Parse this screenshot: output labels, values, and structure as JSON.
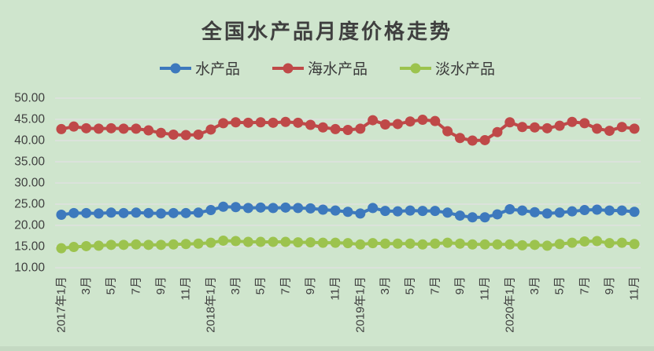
{
  "page": {
    "background_color": "#cfe5cd",
    "bottom_strip_color": "#c4d9c2",
    "text_color": "#3f3f3f"
  },
  "chart_data": {
    "type": "line",
    "title": "全国水产品月度价格走势",
    "xlabel": "",
    "ylabel": "",
    "ylim": [
      10,
      50
    ],
    "y_ticks": [
      "50.00",
      "45.00",
      "40.00",
      "35.00",
      "30.00",
      "25.00",
      "20.00",
      "15.00",
      "10.00"
    ],
    "grid": true,
    "gridline_color": "#e7dfe9",
    "axis_text_color": "#3f3f3f",
    "legend_position": "top",
    "x_tick_step": 2,
    "x_tick_labels": [
      "2017年1月",
      "3月",
      "5月",
      "7月",
      "9月",
      "11月",
      "2018年1月",
      "3月",
      "5月",
      "7月",
      "9月",
      "11月",
      "2019年1月",
      "3月",
      "5月",
      "7月",
      "9月",
      "11月",
      "2020年1月",
      "3月",
      "5月",
      "7月",
      "9月",
      "11月"
    ],
    "x_range_note": "monthly data 2017-01 through 2020-11, 47 points",
    "series": [
      {
        "name": "水产品",
        "color": "#3d79bd",
        "values": [
          22.5,
          22.9,
          22.9,
          22.8,
          23.0,
          22.9,
          23.0,
          22.9,
          22.8,
          22.9,
          22.9,
          23.0,
          23.6,
          24.4,
          24.3,
          24.1,
          24.2,
          24.1,
          24.2,
          24.1,
          24.0,
          23.7,
          23.5,
          23.2,
          22.8,
          24.1,
          23.4,
          23.3,
          23.5,
          23.4,
          23.4,
          23.0,
          22.3,
          21.9,
          21.9,
          22.6,
          23.8,
          23.5,
          23.1,
          22.8,
          23.0,
          23.3,
          23.6,
          23.7,
          23.5,
          23.5,
          23.2
        ]
      },
      {
        "name": "海水产品",
        "color": "#bf4948",
        "values": [
          42.7,
          43.3,
          42.9,
          42.8,
          42.9,
          42.8,
          42.8,
          42.4,
          41.8,
          41.4,
          41.3,
          41.4,
          42.6,
          44.1,
          44.3,
          44.2,
          44.3,
          44.2,
          44.4,
          44.2,
          43.7,
          43.1,
          42.7,
          42.5,
          42.8,
          44.8,
          43.8,
          43.9,
          44.5,
          44.9,
          44.6,
          42.2,
          40.6,
          40.0,
          40.1,
          42.0,
          44.3,
          43.2,
          43.1,
          42.9,
          43.5,
          44.4,
          44.1,
          42.8,
          42.3,
          43.2,
          42.8
        ]
      },
      {
        "name": "淡水产品",
        "color": "#9cc34e",
        "values": [
          14.6,
          14.9,
          15.1,
          15.2,
          15.4,
          15.4,
          15.5,
          15.4,
          15.4,
          15.5,
          15.6,
          15.7,
          15.9,
          16.4,
          16.3,
          16.1,
          16.1,
          16.1,
          16.1,
          16.0,
          16.0,
          15.9,
          15.9,
          15.8,
          15.5,
          15.8,
          15.7,
          15.7,
          15.7,
          15.5,
          15.7,
          15.9,
          15.7,
          15.5,
          15.5,
          15.5,
          15.5,
          15.3,
          15.4,
          15.2,
          15.6,
          15.9,
          16.2,
          16.3,
          15.8,
          15.9,
          15.6
        ]
      }
    ]
  }
}
